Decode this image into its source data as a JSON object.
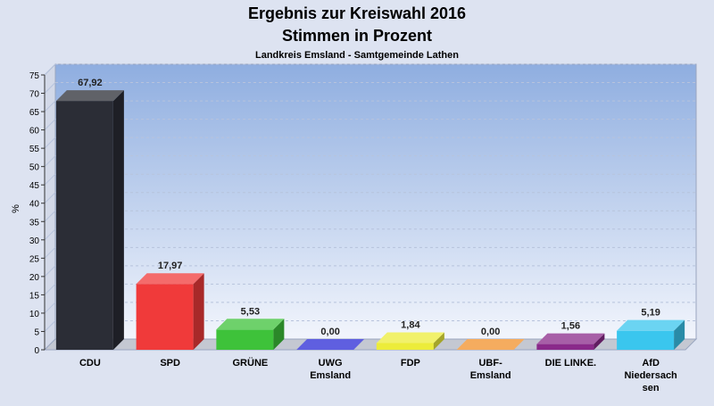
{
  "chart_data": {
    "type": "bar",
    "title": "Ergebnis zur Kreiswahl 2016",
    "title_line2": "Stimmen in Prozent",
    "subtitle": "Landkreis Emsland - Samtgemeinde Lathen",
    "ylabel": "%",
    "xlabel": "",
    "ylim": [
      0,
      75
    ],
    "ytick_step": 5,
    "grid": true,
    "categories": [
      "CDU",
      "SPD",
      "GRÜNE",
      "UWG Emsland",
      "FDP",
      "UBF-Emsland",
      "DIE LINKE.",
      "AfD Niedersachsen"
    ],
    "category_lines": [
      [
        "CDU"
      ],
      [
        "SPD"
      ],
      [
        "GRÜNE"
      ],
      [
        "UWG",
        "Emsland"
      ],
      [
        "FDP"
      ],
      [
        "UBF-",
        "Emsland"
      ],
      [
        "DIE LINKE."
      ],
      [
        "AfD",
        "Niedersach",
        "sen"
      ]
    ],
    "values": [
      67.92,
      17.97,
      5.53,
      0.0,
      1.84,
      0.0,
      1.56,
      5.19
    ],
    "value_labels": [
      "67,92",
      "17,97",
      "5,53",
      "0,00",
      "1,84",
      "0,00",
      "1,56",
      "5,19"
    ],
    "colors": [
      "#2b2d36",
      "#f03a3a",
      "#3ec23a",
      "#2a2ad6",
      "#ecec3a",
      "#f2902a",
      "#8a2a8a",
      "#3ac6ee"
    ]
  }
}
